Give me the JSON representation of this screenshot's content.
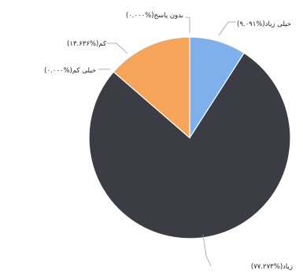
{
  "chart_data": {
    "type": "pie",
    "slices": [
      {
        "label": "خیلی زیاد",
        "value": 9.091,
        "display": "خیلی زیاد(%۹.۰۹۱)",
        "color": "#7fb0ec"
      },
      {
        "label": "زیاد",
        "value": 77.273,
        "display": "زیاد(%۷۷.۲۷۳)",
        "color": "#3c3c44"
      },
      {
        "label": "کم",
        "value": 13.636,
        "display": "کم(%۱۳.۶۳۶)",
        "color": "#f6a45a"
      },
      {
        "label": "خیلی کم",
        "value": 0.0,
        "display": "خیلی کم(%۰.۰۰۰)",
        "color": "#cccccc"
      },
      {
        "label": "بدون پاسخ",
        "value": 0.0,
        "display": "بدون پاسخ(%۰.۰۰۰)",
        "color": "#cccccc"
      }
    ],
    "start_angle_deg": 0,
    "direction": "clockwise",
    "legend": "none",
    "title": ""
  }
}
